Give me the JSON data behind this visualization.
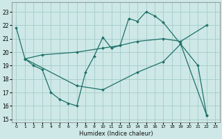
{
  "xlabel": "Humidex (Indice chaleur)",
  "bg_color": "#cde8e6",
  "grid_color": "#a5ccc9",
  "line_color": "#1e7068",
  "xlim": [
    -0.5,
    23.5
  ],
  "ylim": [
    14.8,
    23.7
  ],
  "yticks": [
    15,
    16,
    17,
    18,
    19,
    20,
    21,
    22,
    23
  ],
  "xticks": [
    0,
    1,
    2,
    3,
    4,
    5,
    6,
    7,
    8,
    9,
    10,
    11,
    12,
    13,
    14,
    15,
    16,
    17,
    18,
    19,
    20,
    21,
    22,
    23
  ],
  "line1_x": [
    0,
    1,
    2,
    3,
    4,
    5,
    6,
    7,
    8,
    9,
    10,
    11,
    12,
    13,
    14,
    15,
    16,
    17,
    21,
    22
  ],
  "line1_y": [
    21.8,
    19.5,
    19.0,
    18.7,
    17.0,
    16.5,
    16.2,
    16.0,
    18.5,
    19.7,
    21.1,
    20.3,
    20.5,
    22.5,
    22.3,
    23.0,
    22.7,
    22.2,
    19.0,
    15.3
  ],
  "line2_x": [
    1,
    3,
    7,
    10,
    12,
    14,
    17,
    19,
    22
  ],
  "line2_y": [
    19.5,
    19.8,
    20.0,
    20.3,
    20.5,
    20.8,
    21.0,
    20.8,
    22.0
  ],
  "line3_x": [
    1,
    7,
    10,
    14,
    17,
    19,
    22
  ],
  "line3_y": [
    19.5,
    17.5,
    17.2,
    18.5,
    19.3,
    20.6,
    15.3
  ]
}
